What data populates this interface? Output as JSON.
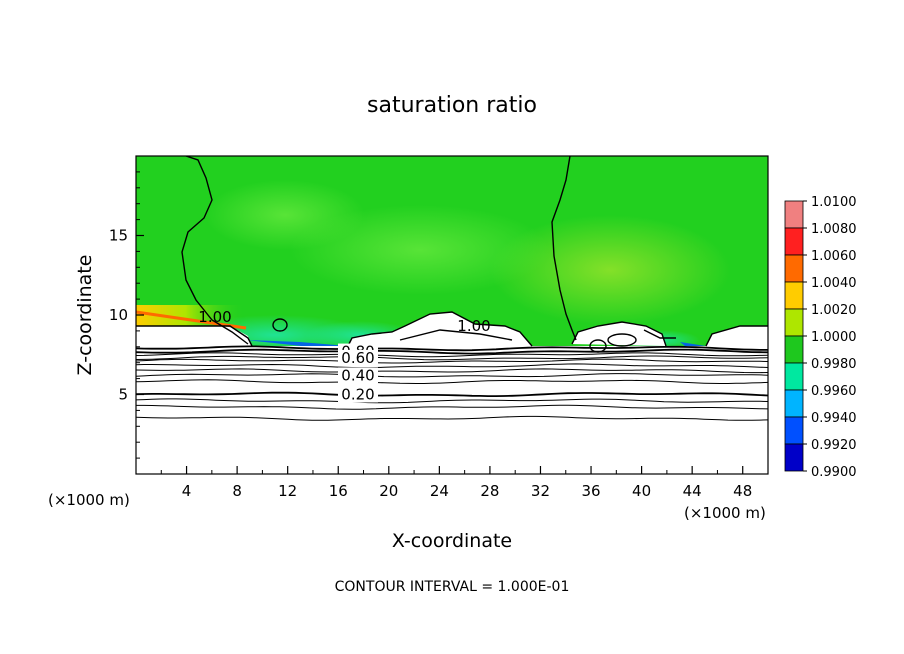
{
  "chart_data": {
    "type": "heatmap",
    "title": "saturation ratio",
    "xlabel": "X-coordinate",
    "ylabel": "Z-coordinate",
    "x_unit": "(×1000 m)",
    "y_unit": "(×1000 m)",
    "xlim": [
      0,
      50
    ],
    "ylim": [
      0,
      20
    ],
    "x_ticks": [
      4,
      8,
      12,
      16,
      20,
      24,
      28,
      32,
      36,
      40,
      44,
      48
    ],
    "y_ticks": [
      5,
      10,
      15
    ],
    "colorbar": {
      "levels": [
        "1.0100",
        "1.0080",
        "1.0060",
        "1.0040",
        "1.0020",
        "1.0000",
        "0.9980",
        "0.9960",
        "0.9940",
        "0.9920",
        "0.9900"
      ],
      "colors": [
        "#f08080",
        "#ff2020",
        "#ff6a00",
        "#ffcc00",
        "#aee600",
        "#1ec81e",
        "#00e8a0",
        "#00b4ff",
        "#0050ff",
        "#0000c8",
        "#5a007a"
      ]
    },
    "field_colors": {
      "background": "#22d01f",
      "light": "#55e02a",
      "cyan": "#1fe6a8",
      "fill_below": "#ffffff"
    },
    "contours": [
      {
        "label": "1.00",
        "z_mean": 9.3
      },
      {
        "label": "0.80",
        "z_mean": 7.7
      },
      {
        "label": "0.60",
        "z_mean": 7.3
      },
      {
        "label": "0.40",
        "z_mean": 6.2
      },
      {
        "label": "0.20",
        "z_mean": 5.0
      }
    ],
    "extra_contour_levels_z": [
      7.9,
      7.5,
      7.1,
      6.8,
      6.5,
      5.8,
      4.6,
      4.2,
      3.5
    ],
    "grid": false,
    "footer": "CONTOUR INTERVAL = 1.000E-01"
  }
}
